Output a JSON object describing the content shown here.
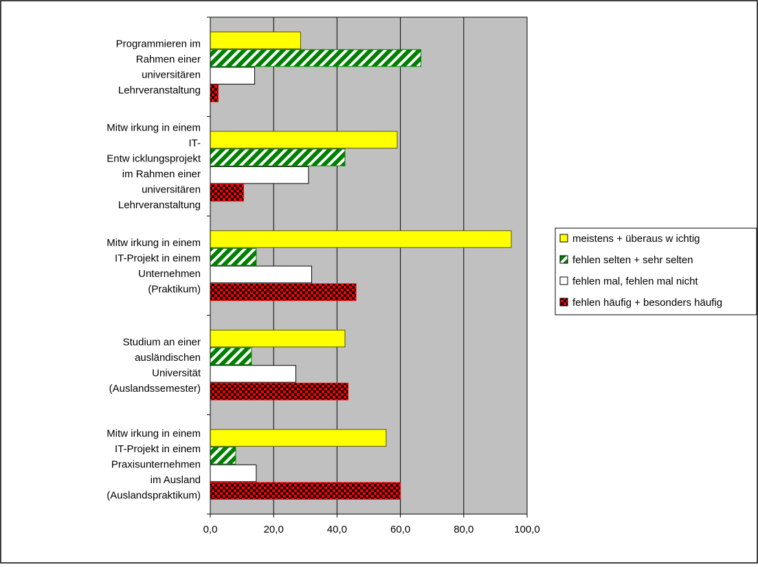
{
  "chart_data": {
    "type": "bar",
    "orientation": "horizontal",
    "categories": [
      [
        "Programmieren im",
        "Rahmen einer",
        "universitären",
        "Lehrveranstaltung"
      ],
      [
        "Mitw irkung in einem",
        "IT-",
        "Entw icklungsprojekt",
        "im Rahmen einer",
        "universitären",
        "Lehrveranstaltung"
      ],
      [
        "Mitw irkung in einem",
        "IT-Projekt in einem",
        "Unternehmen",
        "(Praktikum)"
      ],
      [
        "Studium an einer",
        "ausländischen",
        "Universität",
        "(Auslandssemester)"
      ],
      [
        "Mitw irkung in einem",
        "IT-Projekt in einem",
        "Praxisunternehmen",
        "im Ausland",
        "(Auslandspraktikum)"
      ]
    ],
    "series": [
      {
        "name": "meistens + überaus w ichtig",
        "color": "#ffff00",
        "pattern": "solid",
        "values": [
          28.5,
          59.0,
          95.0,
          42.5,
          55.5
        ]
      },
      {
        "name": "fehlen selten + sehr selten",
        "color": "#008000",
        "pattern": "diagonal-stripes",
        "values": [
          66.5,
          42.5,
          14.5,
          13.0,
          8.0
        ]
      },
      {
        "name": "fehlen mal, fehlen mal nicht",
        "color": "#ffffff",
        "pattern": "solid",
        "values": [
          14.0,
          31.0,
          32.0,
          27.0,
          14.5
        ]
      },
      {
        "name": "fehlen häufig + besonders häufig",
        "color": "#ff0000",
        "pattern": "checkerboard",
        "values": [
          2.5,
          10.5,
          46.0,
          43.5,
          60.0
        ]
      }
    ],
    "xlim": [
      0,
      100
    ],
    "xticks": [
      "0,0",
      "20,0",
      "40,0",
      "60,0",
      "80,0",
      "100,0"
    ],
    "title": "",
    "xlabel": "",
    "ylabel": "",
    "grid": true,
    "plot_background": "#c0c0c0",
    "legend_position": "right"
  }
}
